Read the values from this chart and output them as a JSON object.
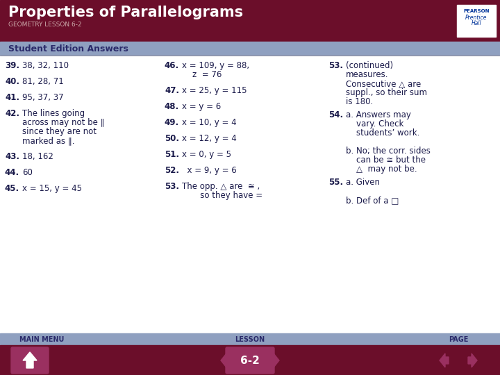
{
  "title": "Properties of Parallelograms",
  "subtitle": "GEOMETRY LESSON 6-2",
  "section_label": "Student Edition Answers",
  "bg_color": "#ffffff",
  "header_bg": "#6b0e2a",
  "section_bg": "#8fa0c0",
  "footer_bottom_bg": "#6b0e2a",
  "col1": [
    [
      "39.",
      "38, 32, 110"
    ],
    [
      "40.",
      "81, 28, 71"
    ],
    [
      "41.",
      "95, 37, 37"
    ],
    [
      "42.",
      "The lines going\nacross may not be ∥\nsince they are not\nmarked as ∥."
    ],
    [
      "43.",
      "18, 162"
    ],
    [
      "44.",
      "60"
    ],
    [
      "45.",
      "x = 15, y = 45"
    ]
  ],
  "col2": [
    [
      "46.",
      "x = 109, y = 88,\n    z  = 76"
    ],
    [
      "47.",
      "x = 25, y = 115"
    ],
    [
      "48.",
      "x = y = 6"
    ],
    [
      "49.",
      "x = 10, y = 4"
    ],
    [
      "50.",
      "x = 12, y = 4"
    ],
    [
      "51.",
      "x = 0, y = 5"
    ],
    [
      "52.",
      "  x = 9, y = 6"
    ],
    [
      "53.",
      "The opp. △ are  ≅ ,\n       so they have ="
    ]
  ],
  "col3": [
    [
      "53.",
      "(continued)\nmeasures.\nConsecutive △ are\nsuppl., so their sum\nis 180."
    ],
    [
      "54.",
      "a. Answers may\n    vary. Check\n    students’ work.\n\nb. No; the corr. sides\n    can be ≅ but the\n    △  may not be."
    ],
    [
      "55.",
      "a. Given\n\nb. Def of a □"
    ]
  ],
  "footer_labels": [
    "MAIN MENU",
    "LESSON",
    "PAGE"
  ],
  "lesson_number": "6-2",
  "text_color": "#1a1a4a",
  "subtitle_color": "#ccaaaa",
  "logo_text_color": "#003399",
  "button_color": "#9a3060"
}
